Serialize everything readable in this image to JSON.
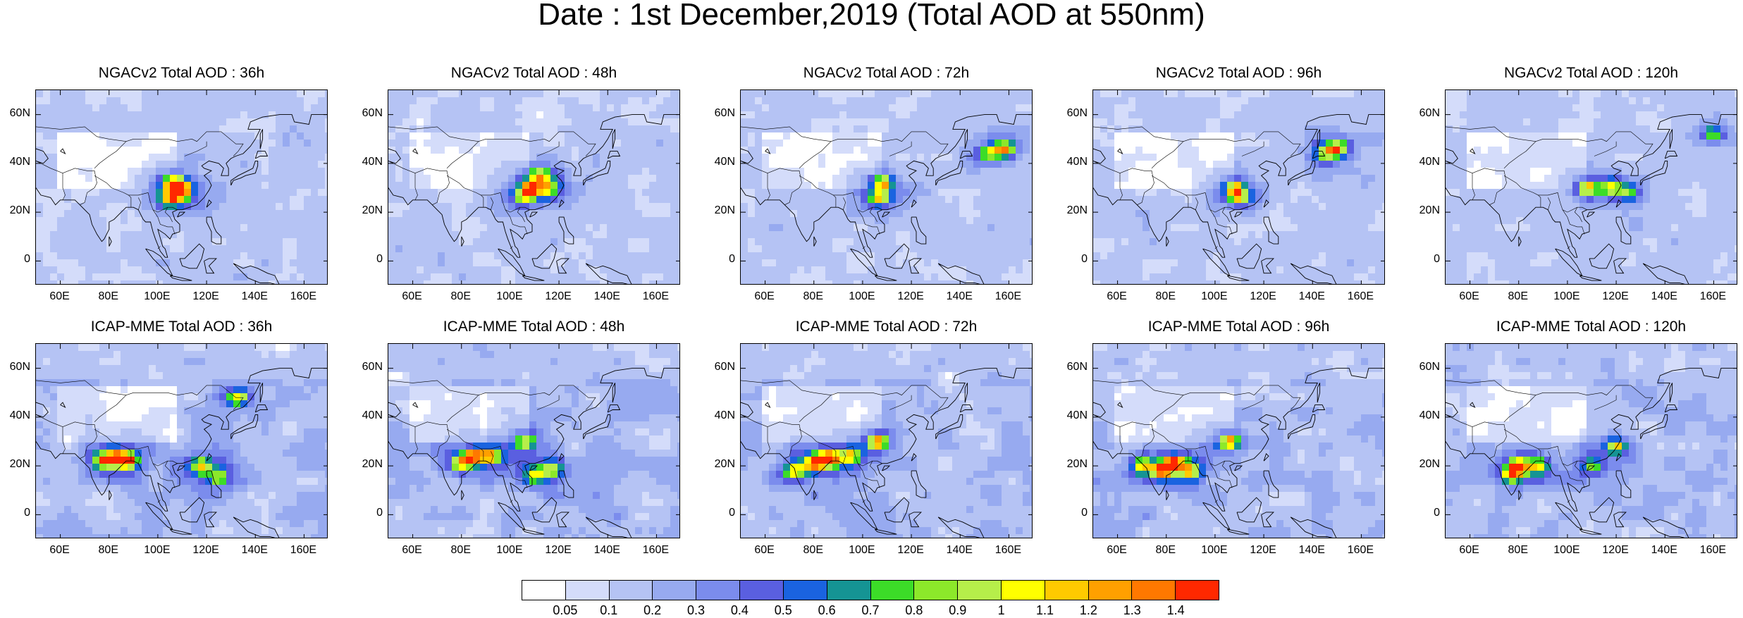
{
  "title": "Date : 1st December,2019 (Total AOD at 550nm)",
  "panels": [
    {
      "title": "NGACv2 Total AOD : 36h",
      "model": "NGACv2",
      "lead": "36h",
      "hotspots": [
        [
          108,
          28,
          0.9
        ],
        [
          106,
          32,
          0.8
        ],
        [
          110,
          30,
          0.6
        ],
        [
          105,
          25,
          0.5
        ]
      ]
    },
    {
      "title": "NGACv2 Total AOD : 48h",
      "model": "NGACv2",
      "lead": "48h",
      "hotspots": [
        [
          108,
          30,
          0.9
        ],
        [
          112,
          35,
          0.7
        ],
        [
          106,
          26,
          0.6
        ],
        [
          115,
          30,
          0.55
        ]
      ]
    },
    {
      "title": "NGACv2 Total AOD : 72h",
      "model": "NGACv2",
      "lead": "72h",
      "hotspots": [
        [
          108,
          32,
          0.9
        ],
        [
          107,
          26,
          0.8
        ],
        [
          158,
          46,
          0.9
        ],
        [
          152,
          44,
          0.5
        ]
      ]
    },
    {
      "title": "NGACv2 Total AOD : 96h",
      "model": "NGACv2",
      "lead": "96h",
      "hotspots": [
        [
          108,
          30,
          0.85
        ],
        [
          110,
          26,
          0.8
        ],
        [
          150,
          46,
          0.95
        ],
        [
          145,
          44,
          0.55
        ]
      ]
    },
    {
      "title": "NGACv2 Total AOD : 120h",
      "model": "NGACv2",
      "lead": "120h",
      "hotspots": [
        [
          108,
          30,
          0.85
        ],
        [
          118,
          30,
          0.7
        ],
        [
          160,
          52,
          0.6
        ],
        [
          125,
          28,
          0.5
        ]
      ]
    },
    {
      "title": "ICAP-MME Total AOD : 36h",
      "model": "ICAP-MME",
      "lead": "36h",
      "hotspots": [
        [
          83,
          23,
          1.1
        ],
        [
          88,
          22,
          1.0
        ],
        [
          78,
          22,
          0.8
        ],
        [
          118,
          20,
          0.7
        ],
        [
          133,
          48,
          0.7
        ],
        [
          125,
          15,
          0.6
        ]
      ]
    },
    {
      "title": "ICAP-MME Total AOD : 48h",
      "model": "ICAP-MME",
      "lead": "48h",
      "hotspots": [
        [
          85,
          24,
          1.0
        ],
        [
          80,
          21,
          0.9
        ],
        [
          106,
          30,
          0.8
        ],
        [
          92,
          24,
          0.8
        ],
        [
          110,
          16,
          0.6
        ],
        [
          117,
          18,
          0.55
        ]
      ]
    },
    {
      "title": "ICAP-MME Total AOD : 72h",
      "model": "ICAP-MME",
      "lead": "72h",
      "hotspots": [
        [
          86,
          23,
          1.3
        ],
        [
          80,
          21,
          0.9
        ],
        [
          106,
          30,
          1.1
        ],
        [
          72,
          18,
          0.8
        ],
        [
          95,
          24,
          0.7
        ]
      ]
    },
    {
      "title": "ICAP-MME Total AOD : 96h",
      "model": "ICAP-MME",
      "lead": "96h",
      "hotspots": [
        [
          83,
          21,
          1.2
        ],
        [
          78,
          18,
          0.9
        ],
        [
          106,
          30,
          1.2
        ],
        [
          90,
          18,
          0.7
        ],
        [
          70,
          20,
          0.6
        ]
      ]
    },
    {
      "title": "ICAP-MME Total AOD : 120h",
      "model": "ICAP-MME",
      "lead": "120h",
      "hotspots": [
        [
          80,
          20,
          1.0
        ],
        [
          77,
          16,
          0.9
        ],
        [
          120,
          28,
          0.8
        ],
        [
          88,
          20,
          0.7
        ],
        [
          110,
          20,
          0.55
        ]
      ]
    }
  ],
  "map_extent": {
    "lon": [
      50,
      170
    ],
    "lat": [
      -10,
      70
    ]
  },
  "x_ticks": [
    "60E",
    "80E",
    "100E",
    "120E",
    "140E",
    "160E"
  ],
  "x_tick_values": [
    60,
    80,
    100,
    120,
    140,
    160
  ],
  "y_ticks": [
    "60N",
    "40N",
    "20N",
    "0"
  ],
  "y_tick_values": [
    60,
    40,
    20,
    0
  ],
  "colorbar": {
    "colors": [
      "#ffffff",
      "#d4dcfa",
      "#b5c3f4",
      "#97aaf0",
      "#7b8ced",
      "#5a5fe0",
      "#1a63e0",
      "#159494",
      "#3cdc28",
      "#8ce82a",
      "#b6ee4a",
      "#ffff00",
      "#ffca00",
      "#ffa000",
      "#ff7800",
      "#ff2800"
    ],
    "labels": [
      "0.05",
      "0.1",
      "0.2",
      "0.3",
      "0.4",
      "0.5",
      "0.6",
      "0.7",
      "0.8",
      "0.9",
      "1",
      "1.1",
      "1.2",
      "1.3",
      "1.4"
    ]
  }
}
